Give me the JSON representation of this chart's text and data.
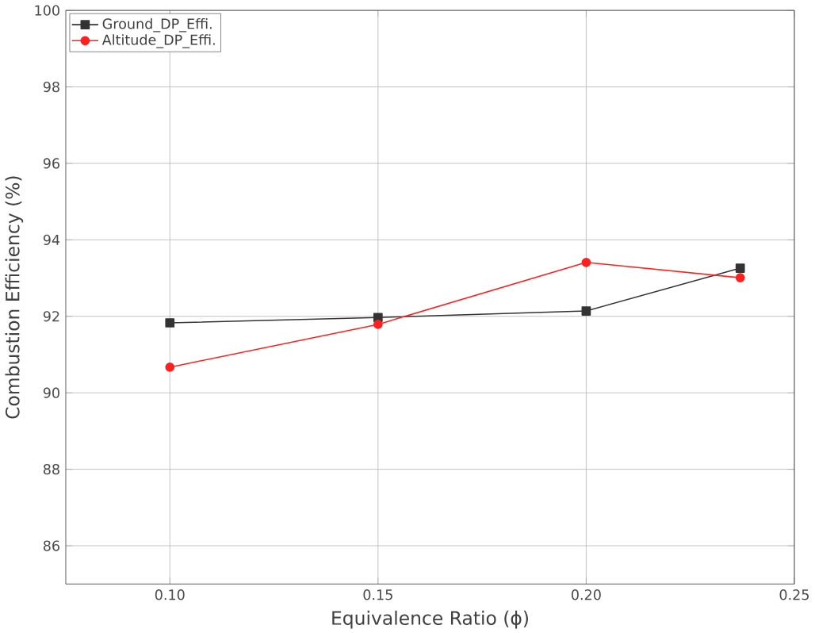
{
  "chart_data": {
    "type": "line",
    "xlabel": "Equivalence Ratio (ϕ)",
    "ylabel": "Combustion Efficiency (%)",
    "xlim": [
      0.075,
      0.25
    ],
    "xticks": [
      {
        "value": 0.1,
        "label": "0.10"
      },
      {
        "value": 0.15,
        "label": "0.15"
      },
      {
        "value": 0.2,
        "label": "0.20"
      },
      {
        "value": 0.25,
        "label": "0.25"
      }
    ],
    "ylim": [
      85,
      100
    ],
    "yticks": [
      86,
      88,
      90,
      92,
      94,
      96,
      98,
      100
    ],
    "x": [
      0.1,
      0.15,
      0.2,
      0.237
    ],
    "series": [
      {
        "name": "Ground_DP_Effi.",
        "color": "#333333",
        "marker": "square",
        "values": [
          91.83,
          91.97,
          92.14,
          93.26
        ]
      },
      {
        "name": "Altitude_DP_Effi.",
        "color": "#ff2020",
        "marker": "circle",
        "values": [
          90.67,
          91.79,
          93.41,
          93.01
        ]
      }
    ],
    "grid": true,
    "legend": "top left"
  }
}
